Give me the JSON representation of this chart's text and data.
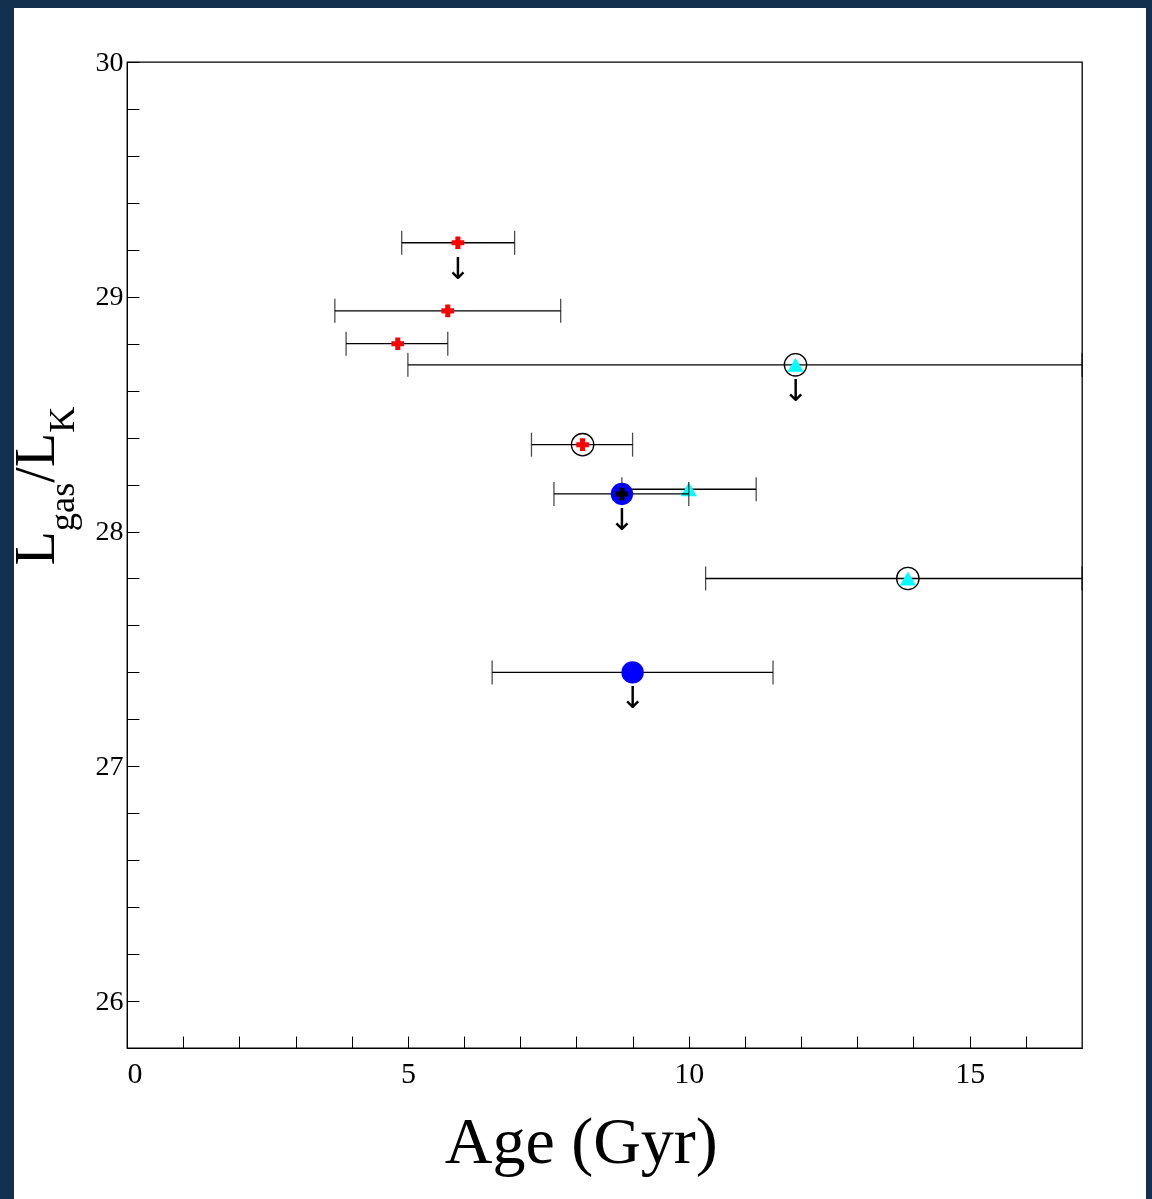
{
  "chart_data": {
    "type": "scatter",
    "xlabel": "Age (Gyr)",
    "ylabel": "L$_{gas}$/L$_{K}$",
    "xlim": [
      0,
      17
    ],
    "ylim": [
      25.8,
      30
    ],
    "xticks": [
      0,
      {
        "value": 1,
        "label": null
      },
      {
        "value": 2,
        "label": null
      },
      {
        "value": 3,
        "label": null
      },
      {
        "value": 4,
        "label": null
      },
      5,
      {
        "value": 6,
        "label": null
      },
      {
        "value": 7,
        "label": null
      },
      {
        "value": 8,
        "label": null
      },
      {
        "value": 9,
        "label": null
      },
      10,
      {
        "value": 11,
        "label": null
      },
      {
        "value": 12,
        "label": null
      },
      {
        "value": 13,
        "label": null
      },
      {
        "value": 14,
        "label": null
      },
      15,
      {
        "value": 16,
        "label": null
      }
    ],
    "yticks": [
      {
        "value": 26,
        "label": "26"
      },
      {
        "value": 26.2,
        "label": null
      },
      {
        "value": 26.4,
        "label": null
      },
      {
        "value": 26.6,
        "label": null
      },
      {
        "value": 26.8,
        "label": null
      },
      27,
      {
        "value": 27.2,
        "label": null
      },
      {
        "value": 27.4,
        "label": null
      },
      {
        "value": 27.6,
        "label": null
      },
      {
        "value": 27.8,
        "label": null
      },
      28,
      {
        "value": 28.2,
        "label": null
      },
      {
        "value": 28.4,
        "label": null
      },
      {
        "value": 28.6,
        "label": null
      },
      {
        "value": 28.8,
        "label": null
      },
      29,
      {
        "value": 29.2,
        "label": null
      },
      {
        "value": 29.4,
        "label": null
      },
      {
        "value": 29.6,
        "label": null
      },
      {
        "value": 29.8,
        "label": null
      },
      30
    ],
    "grid": false,
    "series": [
      {
        "color": "#ff0000",
        "marker": "cross",
        "x": [
          5.89,
          5.71,
          4.82,
          8.11
        ],
        "values": [
          29.23,
          28.94,
          28.8,
          28.37
        ],
        "xerrors": [
          [
            4.89,
            6.9
          ],
          [
            3.7,
            7.72
          ],
          [
            3.9,
            5.71
          ],
          [
            7.2,
            9.0
          ]
        ]
      },
      {
        "color": "#00ffff",
        "marker": "triangle",
        "x": [
          11.9,
          10.0,
          13.9
        ],
        "values": [
          28.71,
          28.18,
          27.8
        ],
        "xerrors": [
          [
            5.0,
            17
          ],
          [
            8.81,
            11.2
          ],
          [
            10.3,
            17
          ]
        ]
      },
      {
        "color": "#0000ff",
        "marker": "circle",
        "x": [
          8.81,
          9.0
        ],
        "values": [
          28.16,
          27.4
        ],
        "xerrors": [
          [
            7.6,
            10.0
          ],
          [
            6.5,
            11.5
          ]
        ]
      },
      {
        "color": "#000000",
        "marker": "cross",
        "x": [
          8.81
        ],
        "values": [
          28.16
        ]
      },
      {
        "color": "#000000",
        "marker": "circle",
        "x": [
          11.9,
          8.11,
          13.9
        ],
        "values": [
          28.71,
          28.37,
          27.8
        ]
      }
    ],
    "annotations": [
      {
        "text": "↓",
        "x": 5.89,
        "y": 29.23
      },
      {
        "text": "↓",
        "x": 11.9,
        "y": 28.71
      },
      {
        "text": "↓",
        "x": 8.81,
        "y": 28.16
      },
      {
        "text": "↓",
        "x": 9.0,
        "y": 27.4
      }
    ]
  }
}
